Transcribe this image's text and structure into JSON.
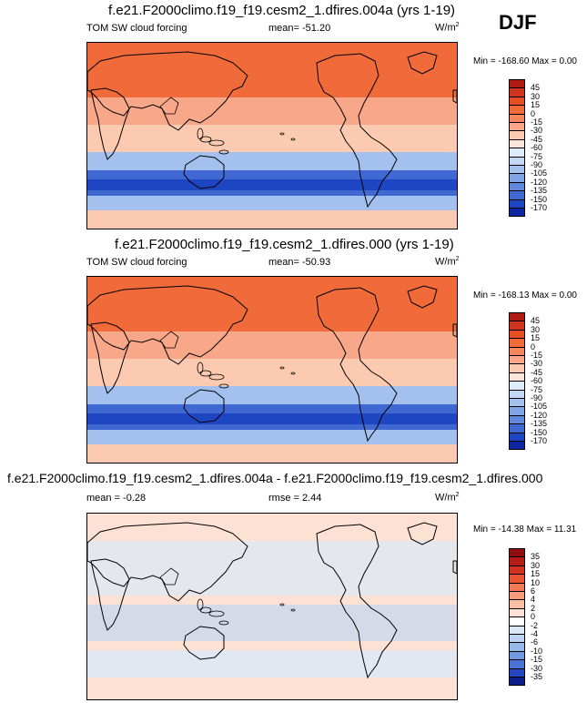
{
  "season": "DJF",
  "colors": {
    "land_line": "#000000",
    "bg": "#ffffff"
  },
  "chart_data": [
    {
      "type": "heatmap",
      "title": "f.e21.F2000climo.f19_f19.cesm2_1.dfires.004a (yrs 1-19)",
      "left_label": "TOM SW cloud forcing",
      "stat_label": "mean=  -51.20",
      "units": "W/m",
      "units_exp": "2",
      "minmax": "Min = -168.60 Max =    0.00",
      "colorbar": {
        "levels": [
          "45",
          "30",
          "15",
          "0",
          "-15",
          "-30",
          "-45",
          "-60",
          "-75",
          "-90",
          "-105",
          "-120",
          "-135",
          "-150",
          "-170"
        ],
        "colors": [
          "#b01a10",
          "#d1341c",
          "#e54d24",
          "#f06a3a",
          "#f5875e",
          "#f8a888",
          "#fbcab0",
          "#fde6d9",
          "#deebfa",
          "#c2d8f5",
          "#a3c0ee",
          "#82a5e6",
          "#6189dd",
          "#3f68d2",
          "#1f46c2",
          "#0c26a2"
        ]
      }
    },
    {
      "type": "heatmap",
      "title": "f.e21.F2000climo.f19_f19.cesm2_1.dfires.000 (yrs 1-19)",
      "left_label": "TOM SW cloud forcing",
      "stat_label": "mean=  -50.93",
      "units": "W/m",
      "units_exp": "2",
      "minmax": "Min = -168.13 Max =    0.00",
      "colorbar": {
        "levels": [
          "45",
          "30",
          "15",
          "0",
          "-15",
          "-30",
          "-45",
          "-60",
          "-75",
          "-90",
          "-105",
          "-120",
          "-135",
          "-150",
          "-170"
        ],
        "colors": [
          "#b01a10",
          "#d1341c",
          "#e54d24",
          "#f06a3a",
          "#f5875e",
          "#f8a888",
          "#fbcab0",
          "#fde6d9",
          "#deebfa",
          "#c2d8f5",
          "#a3c0ee",
          "#82a5e6",
          "#6189dd",
          "#3f68d2",
          "#1f46c2",
          "#0c26a2"
        ]
      }
    },
    {
      "type": "heatmap",
      "title": "f.e21.F2000climo.f19_f19.cesm2_1.dfires.004a - f.e21.F2000climo.f19_f19.cesm2_1.dfires.000",
      "left_label": "mean =   -0.28",
      "stat_label": "rmse =   2.44",
      "units": "W/m",
      "units_exp": "2",
      "minmax": "Min = -14.38 Max =  11.31",
      "colorbar": {
        "levels": [
          "35",
          "30",
          "15",
          "10",
          "6",
          "4",
          "2",
          "0",
          "-2",
          "-4",
          "-6",
          "-10",
          "-15",
          "-30",
          "-35"
        ],
        "colors": [
          "#8f0d0d",
          "#b41c14",
          "#d3331e",
          "#e85530",
          "#f37a52",
          "#f79b7a",
          "#fbbfa6",
          "#fde1d4",
          "#ffffff",
          "#dce8f8",
          "#bcd3f3",
          "#97b9ec",
          "#7099e2",
          "#4a73d6",
          "#2446c0",
          "#0c1f8c"
        ]
      }
    }
  ]
}
